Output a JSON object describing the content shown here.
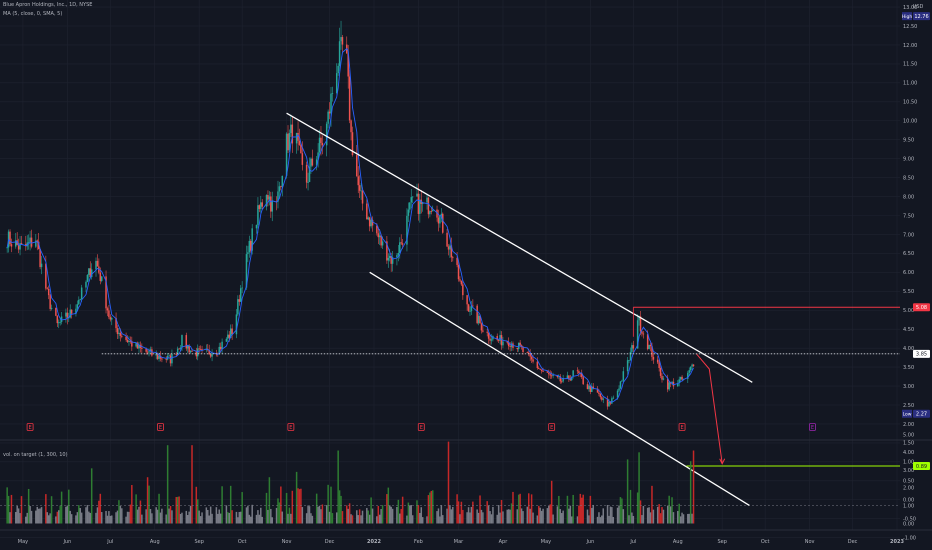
{
  "header": {
    "title": "Blue Apron Holdings, Inc., 1D, NYSE",
    "indicator": "MA (5, close, 0, SMA, 5)",
    "volume_indicator": "vol. on target (1, 300, 10)",
    "currency": "USD"
  },
  "colors": {
    "background": "#131722",
    "grid": "#1f2330",
    "up": "#26a69a",
    "down": "#ef5350",
    "ma": "#2962ff",
    "channel": "#ffffff",
    "resistance": "#f23645",
    "target": "#a0ff00",
    "axis_text": "#b2b5be"
  },
  "chart_data": [
    {
      "type": "candlestick",
      "title": "Blue Apron Holdings, Inc., 1D, NYSE",
      "x_ticks": [
        "May",
        "Jun",
        "Jul",
        "Aug",
        "Sep",
        "Oct",
        "Nov",
        "Dec",
        "2022",
        "Feb",
        "Mar",
        "Apr",
        "May",
        "Jun",
        "Jul",
        "Aug",
        "Sep",
        "Oct",
        "Nov",
        "Dec",
        "2023"
      ],
      "y_ticks": [
        "-1.00",
        "-0.50",
        "0.00",
        "0.50",
        "1.00",
        "1.50",
        "2.00",
        "2.50",
        "3.00",
        "3.50",
        "4.00",
        "4.50",
        "5.00",
        "5.50",
        "6.00",
        "6.50",
        "7.00",
        "7.50",
        "8.00",
        "8.50",
        "9.00",
        "9.50",
        "10.00",
        "10.50",
        "11.00",
        "11.50",
        "12.00",
        "12.50",
        "13.00"
      ],
      "ylim": [
        -1.2,
        13.4
      ],
      "price_path": [
        [
          "2021-04-20",
          6.9
        ],
        [
          "2021-05-01",
          6.6
        ],
        [
          "2021-05-10",
          6.9
        ],
        [
          "2021-05-18",
          5.4
        ],
        [
          "2021-05-25",
          4.6
        ],
        [
          "2021-06-03",
          4.9
        ],
        [
          "2021-06-12",
          5.5
        ],
        [
          "2021-06-20",
          6.4
        ],
        [
          "2021-06-24",
          5.9
        ],
        [
          "2021-07-01",
          4.7
        ],
        [
          "2021-07-10",
          4.3
        ],
        [
          "2021-07-20",
          4.0
        ],
        [
          "2021-08-01",
          3.8
        ],
        [
          "2021-08-12",
          3.7
        ],
        [
          "2021-08-20",
          4.2
        ],
        [
          "2021-08-27",
          3.9
        ],
        [
          "2021-09-05",
          3.85
        ],
        [
          "2021-09-15",
          4.0
        ],
        [
          "2021-09-25",
          4.5
        ],
        [
          "2021-10-01",
          5.8
        ],
        [
          "2021-10-10",
          7.3
        ],
        [
          "2021-10-18",
          8.2
        ],
        [
          "2021-10-24",
          7.5
        ],
        [
          "2021-10-31",
          9.3
        ],
        [
          "2021-11-06",
          9.8
        ],
        [
          "2021-11-14",
          8.3
        ],
        [
          "2021-11-20",
          9.0
        ],
        [
          "2021-11-28",
          9.6
        ],
        [
          "2021-12-06",
          11.5
        ],
        [
          "2021-12-12",
          12.1
        ],
        [
          "2021-12-16",
          9.6
        ],
        [
          "2021-12-22",
          8.0
        ],
        [
          "2021-12-30",
          7.3
        ],
        [
          "2022-01-07",
          6.7
        ],
        [
          "2022-01-14",
          6.3
        ],
        [
          "2022-01-20",
          6.8
        ],
        [
          "2022-01-28",
          7.9
        ],
        [
          "2022-02-05",
          7.7
        ],
        [
          "2022-02-12",
          7.9
        ],
        [
          "2022-02-18",
          7.2
        ],
        [
          "2022-02-25",
          6.4
        ],
        [
          "2022-03-05",
          5.3
        ],
        [
          "2022-03-12",
          4.9
        ],
        [
          "2022-03-20",
          4.4
        ],
        [
          "2022-03-28",
          4.2
        ],
        [
          "2022-04-05",
          4.2
        ],
        [
          "2022-04-13",
          4.0
        ],
        [
          "2022-04-20",
          3.7
        ],
        [
          "2022-04-28",
          3.4
        ],
        [
          "2022-05-06",
          3.2
        ],
        [
          "2022-05-14",
          3.1
        ],
        [
          "2022-05-22",
          3.4
        ],
        [
          "2022-05-29",
          3.0
        ],
        [
          "2022-06-06",
          2.8
        ],
        [
          "2022-06-13",
          2.45
        ],
        [
          "2022-06-20",
          2.9
        ],
        [
          "2022-06-27",
          3.6
        ],
        [
          "2022-07-01",
          4.1
        ],
        [
          "2022-07-04",
          4.8
        ],
        [
          "2022-07-10",
          4.2
        ],
        [
          "2022-07-17",
          3.6
        ],
        [
          "2022-07-24",
          3.0
        ],
        [
          "2022-07-31",
          3.1
        ],
        [
          "2022-08-07",
          3.2
        ],
        [
          "2022-08-14",
          3.8
        ]
      ],
      "moving_average": "MA (5, close, 0, SMA, 5)",
      "annotations": {
        "channel_upper": [
          [
            "2021-11-01",
            10.2
          ],
          [
            "2022-09-22",
            3.1
          ]
        ],
        "channel_lower": [
          [
            "2021-12-29",
            6.0
          ],
          [
            "2022-09-20",
            -0.15
          ]
        ],
        "resistance_line": {
          "value": 5.08,
          "from": "2022-07-01"
        },
        "target_line": {
          "value": 0.89,
          "from": "2022-08-07"
        },
        "projection_path": [
          [
            "2022-08-14",
            3.85
          ],
          [
            "2022-08-23",
            3.45
          ],
          [
            "2022-09-01",
            0.95
          ]
        ],
        "dotted_price_line": {
          "value": 3.85,
          "from": "2021-06-25"
        },
        "last_price": "3.85",
        "high": "12.76",
        "low": "2.27"
      },
      "price_labels": [
        {
          "text": "12.76",
          "tag": "High",
          "bg": "#2a2e80",
          "value": 12.76
        },
        {
          "text": "5.08",
          "bg": "#f23645",
          "value": 5.08
        },
        {
          "text": "3.85",
          "bg": "#ffffff",
          "fg": "#131722",
          "value": 3.85
        },
        {
          "text": "2.27",
          "tag": "Low",
          "bg": "#2a2e80",
          "value": 2.27
        },
        {
          "text": "0.89",
          "bg": "#a0ff00",
          "fg": "#131722",
          "value": 0.89
        }
      ],
      "earnings_markers": [
        {
          "date": "2021-05-06",
          "label": "E"
        },
        {
          "date": "2021-08-05",
          "label": "E"
        },
        {
          "date": "2021-11-04",
          "label": "E"
        },
        {
          "date": "2022-02-03",
          "label": "E"
        },
        {
          "date": "2022-05-05",
          "label": "E"
        },
        {
          "date": "2022-08-04",
          "label": "E"
        },
        {
          "date": "2022-11-03",
          "label": "E"
        }
      ]
    },
    {
      "type": "bar",
      "title": "vol. on target (1, 300, 10)",
      "y_ticks": [
        "0.00",
        "1.00",
        "2.00",
        "3.00",
        "4.00",
        "5.00"
      ],
      "ylim": [
        0,
        5.1
      ],
      "values_description": "daily relative volume bars, red/green for high-volume days, gray otherwise",
      "spikes": [
        {
          "date": "2021-06-18",
          "value": 3.1
        },
        {
          "date": "2021-07-27",
          "value": 2.6
        },
        {
          "date": "2021-08-10",
          "value": 4.4
        },
        {
          "date": "2021-08-27",
          "value": 4.4
        },
        {
          "date": "2021-10-20",
          "value": 2.6
        },
        {
          "date": "2021-11-08",
          "value": 2.9
        },
        {
          "date": "2021-12-07",
          "value": 4.1
        },
        {
          "date": "2022-02-22",
          "value": 4.6
        },
        {
          "date": "2022-05-05",
          "value": 2.4
        },
        {
          "date": "2022-06-27",
          "value": 3.6
        },
        {
          "date": "2022-07-05",
          "value": 4.0
        },
        {
          "date": "2022-08-10",
          "value": 3.5
        },
        {
          "date": "2022-08-12",
          "value": 4.1
        }
      ]
    }
  ]
}
